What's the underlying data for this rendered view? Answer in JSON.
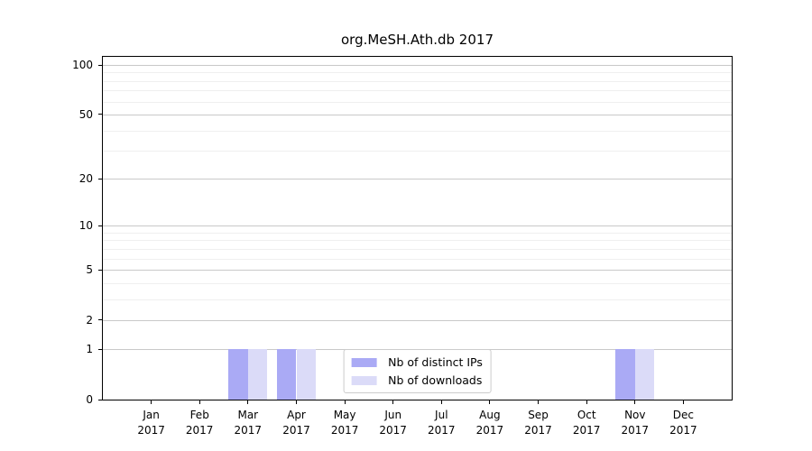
{
  "chart_data": {
    "type": "bar",
    "title": "org.MeSH.Ath.db 2017",
    "categories": [
      "Jan",
      "Feb",
      "Mar",
      "Apr",
      "May",
      "Jun",
      "Jul",
      "Aug",
      "Sep",
      "Oct",
      "Nov",
      "Dec"
    ],
    "x_tick_year": "2017",
    "series": [
      {
        "name": "Nb of distinct IPs",
        "color": "#aaaaf5",
        "values": [
          0,
          0,
          1,
          1,
          0,
          0,
          0,
          0,
          0,
          0,
          1,
          0
        ]
      },
      {
        "name": "Nb of downloads",
        "color": "#dbdbf8",
        "values": [
          0,
          0,
          1,
          1,
          0,
          0,
          0,
          0,
          0,
          0,
          1,
          0
        ]
      }
    ],
    "y_axis": {
      "scale": "log1p",
      "tick_values": [
        0,
        1,
        2,
        5,
        10,
        20,
        50,
        100
      ],
      "minor_gridlines": [
        3,
        4,
        6,
        7,
        8,
        9,
        30,
        40,
        60,
        70,
        80,
        90
      ],
      "ylim": [
        0,
        112
      ]
    },
    "grid": true,
    "legend": {
      "position": "lower center"
    },
    "colors": {
      "major_grid": "#c9c9c9",
      "minor_grid": "#efefef",
      "axis": "#000000",
      "text": "#000000",
      "background": "#ffffff"
    }
  }
}
